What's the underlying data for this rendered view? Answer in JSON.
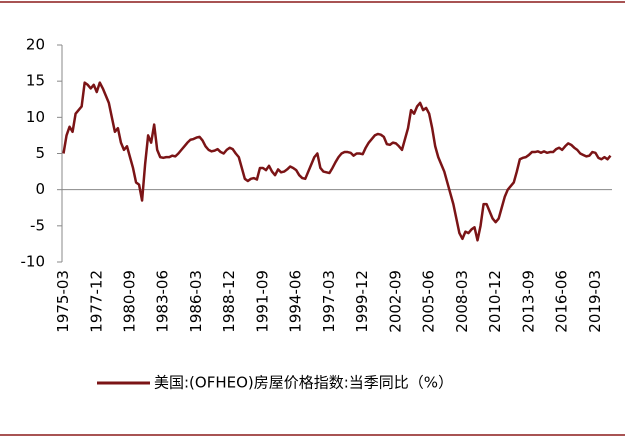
{
  "chart_data": {
    "type": "line",
    "categories": [
      "1975-03",
      null,
      null,
      null,
      null,
      null,
      null,
      null,
      null,
      null,
      null,
      "1977-12",
      null,
      null,
      null,
      null,
      null,
      null,
      null,
      null,
      null,
      null,
      "1980-09",
      null,
      null,
      null,
      null,
      null,
      null,
      null,
      null,
      null,
      null,
      "1983-06",
      null,
      null,
      null,
      null,
      null,
      null,
      null,
      null,
      null,
      null,
      "1986-03",
      null,
      null,
      null,
      null,
      null,
      null,
      null,
      null,
      null,
      null,
      "1988-12",
      null,
      null,
      null,
      null,
      null,
      null,
      null,
      null,
      null,
      null,
      "1991-09",
      null,
      null,
      null,
      null,
      null,
      null,
      null,
      null,
      null,
      null,
      "1994-06",
      null,
      null,
      null,
      null,
      null,
      null,
      null,
      null,
      null,
      null,
      "1997-03",
      null,
      null,
      null,
      null,
      null,
      null,
      null,
      null,
      null,
      null,
      "1999-12",
      null,
      null,
      null,
      null,
      null,
      null,
      null,
      null,
      null,
      null,
      "2002-09",
      null,
      null,
      null,
      null,
      null,
      null,
      null,
      null,
      null,
      null,
      "2005-06",
      null,
      null,
      null,
      null,
      null,
      null,
      null,
      null,
      null,
      null,
      "2008-03",
      null,
      null,
      null,
      null,
      null,
      null,
      null,
      null,
      null,
      null,
      "2010-12",
      null,
      null,
      null,
      null,
      null,
      null,
      null,
      null,
      null,
      null,
      "2013-09",
      null,
      null,
      null,
      null,
      null,
      null,
      null,
      null,
      null,
      null,
      "2016-06",
      null,
      null,
      null,
      null,
      null,
      null,
      null,
      null,
      null,
      null,
      "2019-03",
      null,
      null,
      null,
      null,
      null
    ],
    "series": [
      {
        "name": "美国:(OFHEO)房屋价格指数:当季同比（%）",
        "color": "#7b1416",
        "values": [
          5.0,
          7.5,
          8.7,
          8.0,
          10.5,
          11,
          11.5,
          14.8,
          14.5,
          14,
          14.5,
          13.5,
          14.8,
          14,
          13,
          12,
          10,
          8,
          8.5,
          6.5,
          5.5,
          6,
          4.5,
          3,
          1,
          0.7,
          -1.5,
          3.5,
          7.5,
          6.5,
          9,
          5.5,
          4.5,
          4.4,
          4.5,
          4.5,
          4.7,
          4.6,
          5,
          5.5,
          6,
          6.5,
          6.9,
          7,
          7.2,
          7.3,
          6.8,
          6,
          5.5,
          5.3,
          5.4,
          5.6,
          5.2,
          5.0,
          5.5,
          5.8,
          5.6,
          5,
          4.5,
          3,
          1.5,
          1.2,
          1.5,
          1.6,
          1.4,
          3,
          3,
          2.7,
          3.3,
          2.5,
          2,
          2.8,
          2.4,
          2.5,
          2.8,
          3.2,
          3,
          2.7,
          2,
          1.6,
          1.5,
          2.5,
          3.5,
          4.5,
          5,
          3,
          2.5,
          2.4,
          2.3,
          3,
          3.8,
          4.5,
          5,
          5.2,
          5.2,
          5.1,
          4.7,
          5,
          5,
          4.9,
          5.8,
          6.5,
          7,
          7.5,
          7.7,
          7.6,
          7.3,
          6.3,
          6.2,
          6.5,
          6.4,
          6.0,
          5.5,
          7,
          8.5,
          11,
          10.5,
          11.5,
          12,
          11,
          11.3,
          10.5,
          8.5,
          6,
          4.5,
          3.5,
          2.5,
          1,
          -0.5,
          -2,
          -4,
          -6,
          -6.8,
          -5.8,
          -6,
          -5.5,
          -5.2,
          -7,
          -5,
          -2,
          -2,
          -3,
          -4,
          -4.5,
          -4,
          -2.5,
          -1,
          0,
          0.5,
          1,
          2.5,
          4.2,
          4.4,
          4.5,
          4.8,
          5.2,
          5.2,
          5.3,
          5.1,
          5.3,
          5.1,
          5.2,
          5.2,
          5.6,
          5.8,
          5.5,
          6.0,
          6.4,
          6.2,
          5.8,
          5.5,
          5.0,
          4.8,
          4.6,
          4.7,
          5.2,
          5.1,
          4.4,
          4.2,
          4.5,
          4.2,
          4.7
        ]
      }
    ],
    "ylim": [
      -10,
      20
    ],
    "yticks": [
      -10,
      -5,
      0,
      5,
      10,
      15,
      20
    ],
    "legend": "bottom"
  }
}
